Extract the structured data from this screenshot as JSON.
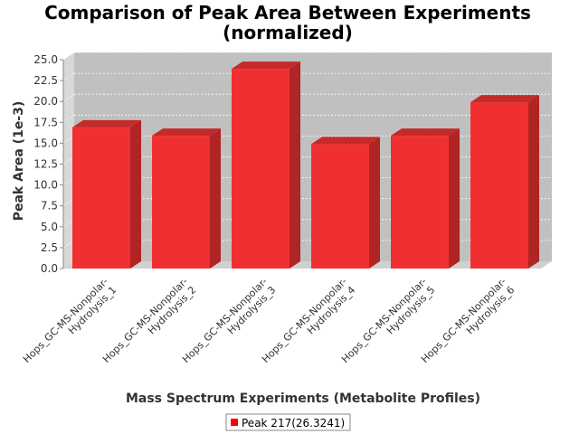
{
  "chart_data": {
    "type": "bar",
    "title_line1": "Comparison of Peak Area Between Experiments",
    "title_line2": "(normalized)",
    "xlabel": "Mass Spectrum Experiments (Metabolite Profiles)",
    "ylabel": "Peak Area (1e-3)",
    "ylim": [
      0,
      25
    ],
    "yticks": [
      "0.0",
      "2.5",
      "5.0",
      "7.5",
      "10.0",
      "12.5",
      "15.0",
      "17.5",
      "20.0",
      "22.5",
      "25.0"
    ],
    "ytick_values": [
      0,
      2.5,
      5,
      7.5,
      10,
      12.5,
      15,
      17.5,
      20,
      22.5,
      25
    ],
    "categories": [
      [
        "Hops_GC-MS-Nonpolar-",
        "Hydrolysis_1"
      ],
      [
        "Hops_GC-MS-Nonpolar-",
        "Hydrolysis_2"
      ],
      [
        "Hops_GC-MS-Nonpolar-",
        "Hydrolysis_3"
      ],
      [
        "Hops_GC-MS-Nonpolar-",
        "Hydrolysis_4"
      ],
      [
        "Hops_GC-MS-Nonpolar-",
        "Hydrolysis_5"
      ],
      [
        "Hops_GC-MS-Nonpolar-",
        "Hydrolysis_6"
      ]
    ],
    "series": [
      {
        "name": "Peak 217(26.3241)",
        "values": [
          16.9,
          15.9,
          23.9,
          14.9,
          15.9,
          19.9
        ]
      }
    ],
    "grid": true,
    "legend_position": "bottom",
    "colors": {
      "bar_front": "#f03030",
      "bar_top": "#c42a2a",
      "bar_side": "#b02424",
      "plot_bg": "#c0c0c0",
      "wall_left": "#d8d8d8",
      "floor": "#d0d0d0",
      "gridline": "#ffffff",
      "legend_swatch": "#ff0000"
    }
  }
}
